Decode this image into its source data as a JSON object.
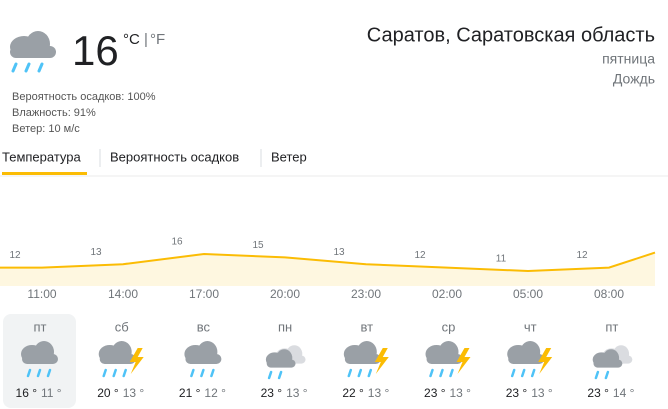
{
  "current": {
    "temp": "16",
    "unit_c": "°C",
    "unit_sep": "|",
    "unit_f": "°F",
    "details": [
      "Вероятность осадков: 100%",
      "Влажность: 91%",
      "Ветер: 10 м/с"
    ]
  },
  "location": {
    "name": "Саратов, Саратовская область",
    "day": "пятница",
    "condition": "Дождь"
  },
  "tabs": [
    "Температура",
    "Вероятность осадков",
    "Ветер"
  ],
  "hourly": {
    "times": [
      "11:00",
      "14:00",
      "17:00",
      "20:00",
      "23:00",
      "02:00",
      "05:00",
      "08:00"
    ],
    "temps": [
      12,
      13,
      16,
      15,
      13,
      12,
      11,
      12
    ]
  },
  "daily": {
    "days": [
      "пт",
      "сб",
      "вс",
      "пн",
      "вт",
      "ср",
      "чт",
      "пт"
    ],
    "high": [
      "16 °",
      "20 °",
      "21 °",
      "23 °",
      "22 °",
      "23 °",
      "23 °",
      "23 °"
    ],
    "low": [
      "11 °",
      "13 °",
      "12 °",
      "13 °",
      "13 °",
      "13 °",
      "13 °",
      "14 °"
    ]
  }
}
